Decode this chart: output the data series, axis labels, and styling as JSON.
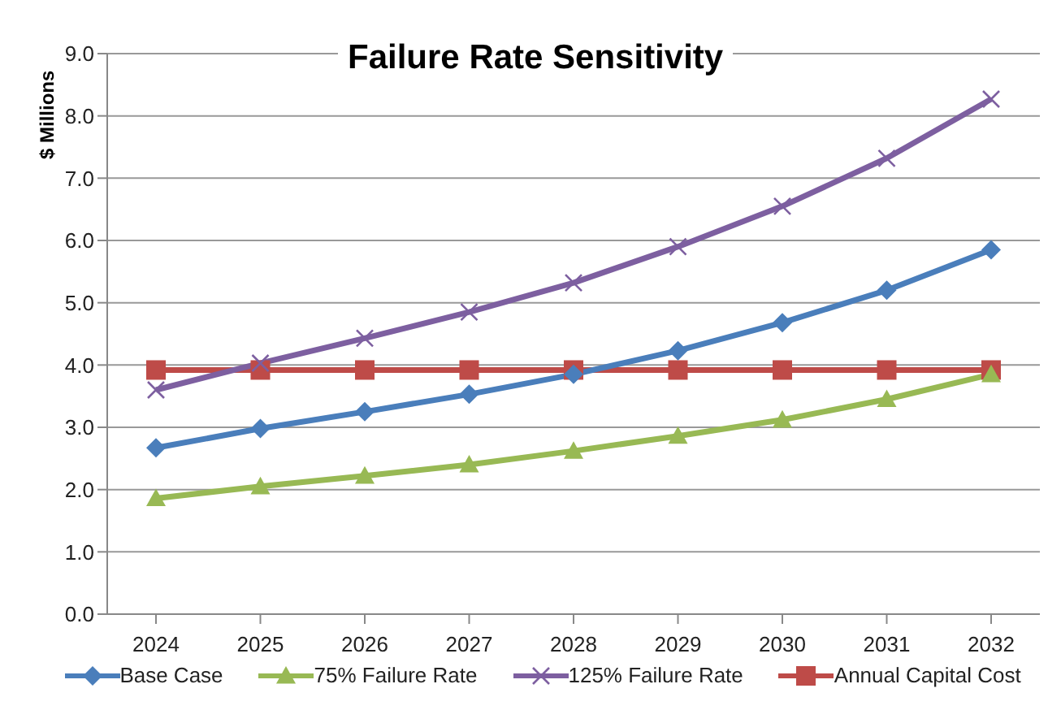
{
  "chart_data": {
    "type": "line",
    "title": "Failure Rate Sensitivity",
    "ylabel": "$ Millions",
    "categories": [
      "2024",
      "2025",
      "2026",
      "2027",
      "2028",
      "2029",
      "2030",
      "2031",
      "2032"
    ],
    "series": [
      {
        "name": "Base Case",
        "color": "#4a7ebb",
        "marker": "diamond",
        "values": [
          2.67,
          2.98,
          3.25,
          3.53,
          3.85,
          4.23,
          4.68,
          5.2,
          5.85
        ]
      },
      {
        "name": "75% Failure Rate",
        "color": "#98b954",
        "marker": "triangle",
        "values": [
          1.86,
          2.05,
          2.22,
          2.4,
          2.62,
          2.86,
          3.12,
          3.45,
          3.85
        ]
      },
      {
        "name": "125% Failure Rate",
        "color": "#7d5fa0",
        "marker": "cross",
        "values": [
          3.6,
          4.03,
          4.43,
          4.85,
          5.32,
          5.9,
          6.55,
          7.32,
          8.27
        ]
      },
      {
        "name": "Annual Capital Cost",
        "color": "#be4b48",
        "marker": "square",
        "values": [
          3.92,
          3.92,
          3.92,
          3.92,
          3.92,
          3.92,
          3.92,
          3.92,
          3.92
        ]
      }
    ],
    "ylim": [
      0,
      9
    ],
    "yticks": [
      {
        "value": 0,
        "label": "0.0"
      },
      {
        "value": 1,
        "label": "1.0"
      },
      {
        "value": 2,
        "label": "2.0"
      },
      {
        "value": 3,
        "label": "3.0"
      },
      {
        "value": 4,
        "label": "4.0"
      },
      {
        "value": 5,
        "label": "5.0"
      },
      {
        "value": 6,
        "label": "6.0"
      },
      {
        "value": 7,
        "label": "7.0"
      },
      {
        "value": 8,
        "label": "8.0"
      },
      {
        "value": 9,
        "label": "9.0"
      }
    ],
    "grid": "y",
    "legend": "bottom",
    "line_style": "solid"
  }
}
